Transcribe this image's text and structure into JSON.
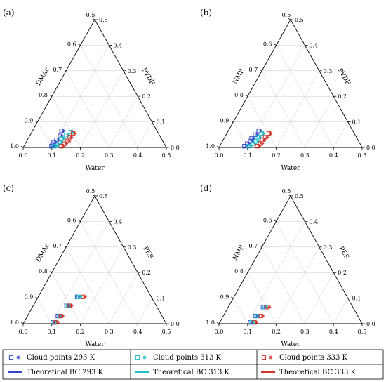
{
  "colors": {
    "293": "#3246c8",
    "313": "#1ebeca",
    "333": "#d23228"
  },
  "legend": {
    "cloud_293": "Cloud points 293 K",
    "cloud_313": "Cloud points 313 K",
    "cloud_333": "Cloud points 333 K",
    "bc_293": "Theoretical BC 293 K",
    "bc_313": "Theoretical BC 313 K",
    "bc_333": "Theoretical BC 333 K"
  },
  "chart_data": [
    {
      "type": "scatter",
      "panel": "(a)",
      "left_axis": "DMAc",
      "right_axis": "PVDF",
      "bottom_axis": "Water",
      "left_ticks": [
        "0.5",
        "0.6",
        "0.7",
        "0.8",
        "0.9",
        "1.0"
      ],
      "right_ticks": [
        "0.0",
        "0.1",
        "0.2",
        "0.3",
        "0.4",
        "0.5"
      ],
      "bottom_ticks": [
        "0.0",
        "0.1",
        "0.2",
        "0.3",
        "0.4",
        "0.5"
      ],
      "scale_max": 0.5,
      "series": [
        {
          "temp": "293",
          "points": [
            [
              0.1,
              0.005
            ],
            [
              0.1,
              0.012
            ],
            [
              0.1,
              0.02
            ],
            [
              0.105,
              0.03
            ],
            [
              0.11,
              0.045
            ],
            [
              0.105,
              0.065
            ]
          ]
        },
        {
          "temp": "313",
          "points": [
            [
              0.11,
              0.005
            ],
            [
              0.115,
              0.012
            ],
            [
              0.12,
              0.022
            ],
            [
              0.12,
              0.035
            ],
            [
              0.13,
              0.048
            ],
            [
              0.14,
              0.06
            ]
          ]
        },
        {
          "temp": "333",
          "points": [
            [
              0.135,
              0.005
            ],
            [
              0.14,
              0.015
            ],
            [
              0.145,
              0.025
            ],
            [
              0.145,
              0.04
            ],
            [
              0.15,
              0.055
            ]
          ]
        }
      ]
    },
    {
      "type": "scatter",
      "panel": "(b)",
      "left_axis": "NMP",
      "right_axis": "PVDF",
      "bottom_axis": "Water",
      "left_ticks": [
        "0.5",
        "0.6",
        "0.7",
        "0.8",
        "0.9",
        "1.0"
      ],
      "right_ticks": [
        "0.0",
        "0.1",
        "0.2",
        "0.3",
        "0.4",
        "0.5"
      ],
      "bottom_ticks": [
        "0.0",
        "0.1",
        "0.2",
        "0.3",
        "0.4",
        "0.5"
      ],
      "scale_max": 0.5,
      "series": [
        {
          "temp": "293",
          "points": [
            [
              0.09,
              0.005
            ],
            [
              0.095,
              0.015
            ],
            [
              0.1,
              0.025
            ],
            [
              0.1,
              0.035
            ],
            [
              0.105,
              0.05
            ],
            [
              0.11,
              0.065
            ]
          ]
        },
        {
          "temp": "313",
          "points": [
            [
              0.105,
              0.005
            ],
            [
              0.115,
              0.015
            ],
            [
              0.12,
              0.025
            ],
            [
              0.12,
              0.04
            ],
            [
              0.125,
              0.055
            ]
          ]
        },
        {
          "temp": "333",
          "points": [
            [
              0.135,
              0.005
            ],
            [
              0.14,
              0.015
            ],
            [
              0.14,
              0.03
            ],
            [
              0.145,
              0.04
            ],
            [
              0.15,
              0.055
            ]
          ]
        }
      ]
    },
    {
      "type": "scatter",
      "panel": "(c)",
      "left_axis": "DMAc",
      "right_axis": "PES",
      "bottom_axis": "Water",
      "left_ticks": [
        "0.5",
        "0.6",
        "0.7",
        "0.8",
        "0.9",
        "1.0"
      ],
      "right_ticks": [
        "0.0",
        "0.1",
        "0.2",
        "0.3",
        "0.4",
        "0.5"
      ],
      "bottom_ticks": [
        "0.0",
        "0.1",
        "0.2",
        "0.3",
        "0.4",
        "0.5"
      ],
      "scale_max": 0.5,
      "series": [
        {
          "temp": "293",
          "points": [
            [
              0.105,
              0.005
            ],
            [
              0.11,
              0.03
            ],
            [
              0.12,
              0.07
            ],
            [
              0.14,
              0.105
            ]
          ]
        },
        {
          "temp": "313",
          "points": [
            [
              0.11,
              0.005
            ],
            [
              0.115,
              0.03
            ],
            [
              0.125,
              0.07
            ],
            [
              0.145,
              0.105
            ]
          ]
        },
        {
          "temp": "333",
          "points": [
            [
              0.115,
              0.005
            ],
            [
              0.12,
              0.03
            ],
            [
              0.13,
              0.07
            ],
            [
              0.16,
              0.105
            ]
          ]
        }
      ]
    },
    {
      "type": "scatter",
      "panel": "(d)",
      "left_axis": "NMP",
      "right_axis": "PES",
      "bottom_axis": "Water",
      "left_ticks": [
        "0.5",
        "0.6",
        "0.7",
        "0.8",
        "0.9",
        "1.0"
      ],
      "right_ticks": [
        "0.0",
        "0.1",
        "0.2",
        "0.3",
        "0.4",
        "0.5"
      ],
      "bottom_ticks": [
        "0.0",
        "0.1",
        "0.2",
        "0.3",
        "0.4",
        "0.5"
      ],
      "scale_max": 0.5,
      "series": [
        {
          "temp": "293",
          "points": [
            [
              0.11,
              0.005
            ],
            [
              0.115,
              0.03
            ],
            [
              0.125,
              0.065
            ]
          ]
        },
        {
          "temp": "313",
          "points": [
            [
              0.115,
              0.005
            ],
            [
              0.12,
              0.03
            ],
            [
              0.13,
              0.065
            ]
          ]
        },
        {
          "temp": "333",
          "points": [
            [
              0.125,
              0.005
            ],
            [
              0.135,
              0.03
            ],
            [
              0.14,
              0.065
            ]
          ]
        }
      ]
    }
  ]
}
